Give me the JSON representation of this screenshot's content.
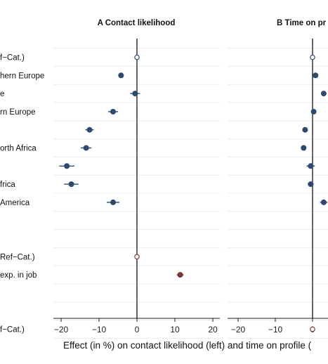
{
  "chart_data": {
    "type": "dot-plot",
    "row_labels": [
      "f−Cat.)",
      "hern Europe",
      "e",
      "rn Europe",
      "",
      "orth Africa",
      "",
      "frica",
      "America",
      "",
      "",
      "Ref−Cat.)",
      "exp. in job",
      "",
      "",
      "f−Cat.)"
    ],
    "xlabel": "Effect (in %) on contact likelihood (left) and time on profile (",
    "panels": [
      {
        "title": "A Contact likelihood",
        "xlim": [
          -22,
          22
        ],
        "xticks": [
          -20,
          -10,
          0,
          10,
          20
        ],
        "xtick_labels": [
          "−20",
          "−10",
          "0",
          "10",
          "20"
        ],
        "points": [
          {
            "row": 0,
            "value": 0,
            "ci": [
              0,
              0
            ],
            "marker": "hollow",
            "color": "#2b4a72"
          },
          {
            "row": 1,
            "value": -4.2,
            "ci": [
              -4.9,
              -3.5
            ],
            "marker": "filled",
            "color": "#2b4a72"
          },
          {
            "row": 2,
            "value": -0.5,
            "ci": [
              -1.8,
              0.8
            ],
            "marker": "filled",
            "color": "#2b4a72"
          },
          {
            "row": 3,
            "value": -6.3,
            "ci": [
              -7.6,
              -5.0
            ],
            "marker": "filled",
            "color": "#2b4a72"
          },
          {
            "row": 4,
            "value": -12.5,
            "ci": [
              -13.6,
              -11.4
            ],
            "marker": "filled",
            "color": "#2b4a72"
          },
          {
            "row": 5,
            "value": -13.4,
            "ci": [
              -14.8,
              -12.0
            ],
            "marker": "filled",
            "color": "#2b4a72"
          },
          {
            "row": 6,
            "value": -18.5,
            "ci": [
              -20.5,
              -16.5
            ],
            "marker": "filled",
            "color": "#2b4a72"
          },
          {
            "row": 7,
            "value": -17.3,
            "ci": [
              -19.2,
              -15.4
            ],
            "marker": "filled",
            "color": "#2b4a72"
          },
          {
            "row": 8,
            "value": -6.3,
            "ci": [
              -8.0,
              -4.6
            ],
            "marker": "filled",
            "color": "#2b4a72"
          },
          {
            "row": 11,
            "value": 0,
            "ci": [
              0,
              0
            ],
            "marker": "hollow",
            "color": "#8b3a3a"
          },
          {
            "row": 12,
            "value": 11.4,
            "ci": [
              10.5,
              12.3
            ],
            "marker": "filled",
            "color": "#7a3535"
          }
        ]
      },
      {
        "title": "B Time on pr",
        "xlim": [
          -23,
          23
        ],
        "xticks": [
          -20,
          -10,
          0
        ],
        "xtick_labels": [
          "−20",
          "−10",
          "0"
        ],
        "points": [
          {
            "row": 0,
            "value": 0,
            "ci": [
              0,
              0
            ],
            "marker": "hollow",
            "color": "#2b4a72"
          },
          {
            "row": 1,
            "value": 0.8,
            "ci": [
              0.2,
              1.4
            ],
            "marker": "filled",
            "color": "#2b4a72"
          },
          {
            "row": 2,
            "value": 3.0,
            "ci": [
              2.4,
              3.6
            ],
            "marker": "filled",
            "color": "#2b4a72"
          },
          {
            "row": 3,
            "value": 0.3,
            "ci": [
              -0.3,
              0.9
            ],
            "marker": "filled",
            "color": "#2b4a72"
          },
          {
            "row": 4,
            "value": -2.0,
            "ci": [
              -2.6,
              -1.4
            ],
            "marker": "filled",
            "color": "#2b4a72"
          },
          {
            "row": 5,
            "value": -2.4,
            "ci": [
              -3.0,
              -1.8
            ],
            "marker": "filled",
            "color": "#2b4a72"
          },
          {
            "row": 6,
            "value": -0.5,
            "ci": [
              -1.6,
              0.6
            ],
            "marker": "filled",
            "color": "#2b4a72"
          },
          {
            "row": 7,
            "value": -0.5,
            "ci": [
              -1.3,
              0.3
            ],
            "marker": "filled",
            "color": "#2b4a72"
          },
          {
            "row": 8,
            "value": 3.0,
            "ci": [
              2.0,
              4.0
            ],
            "marker": "filled",
            "color": "#2b4a72"
          },
          {
            "row": 15,
            "value": 0,
            "ci": [
              0,
              0
            ],
            "marker": "hollow",
            "color": "#8b3a3a"
          }
        ]
      }
    ]
  }
}
